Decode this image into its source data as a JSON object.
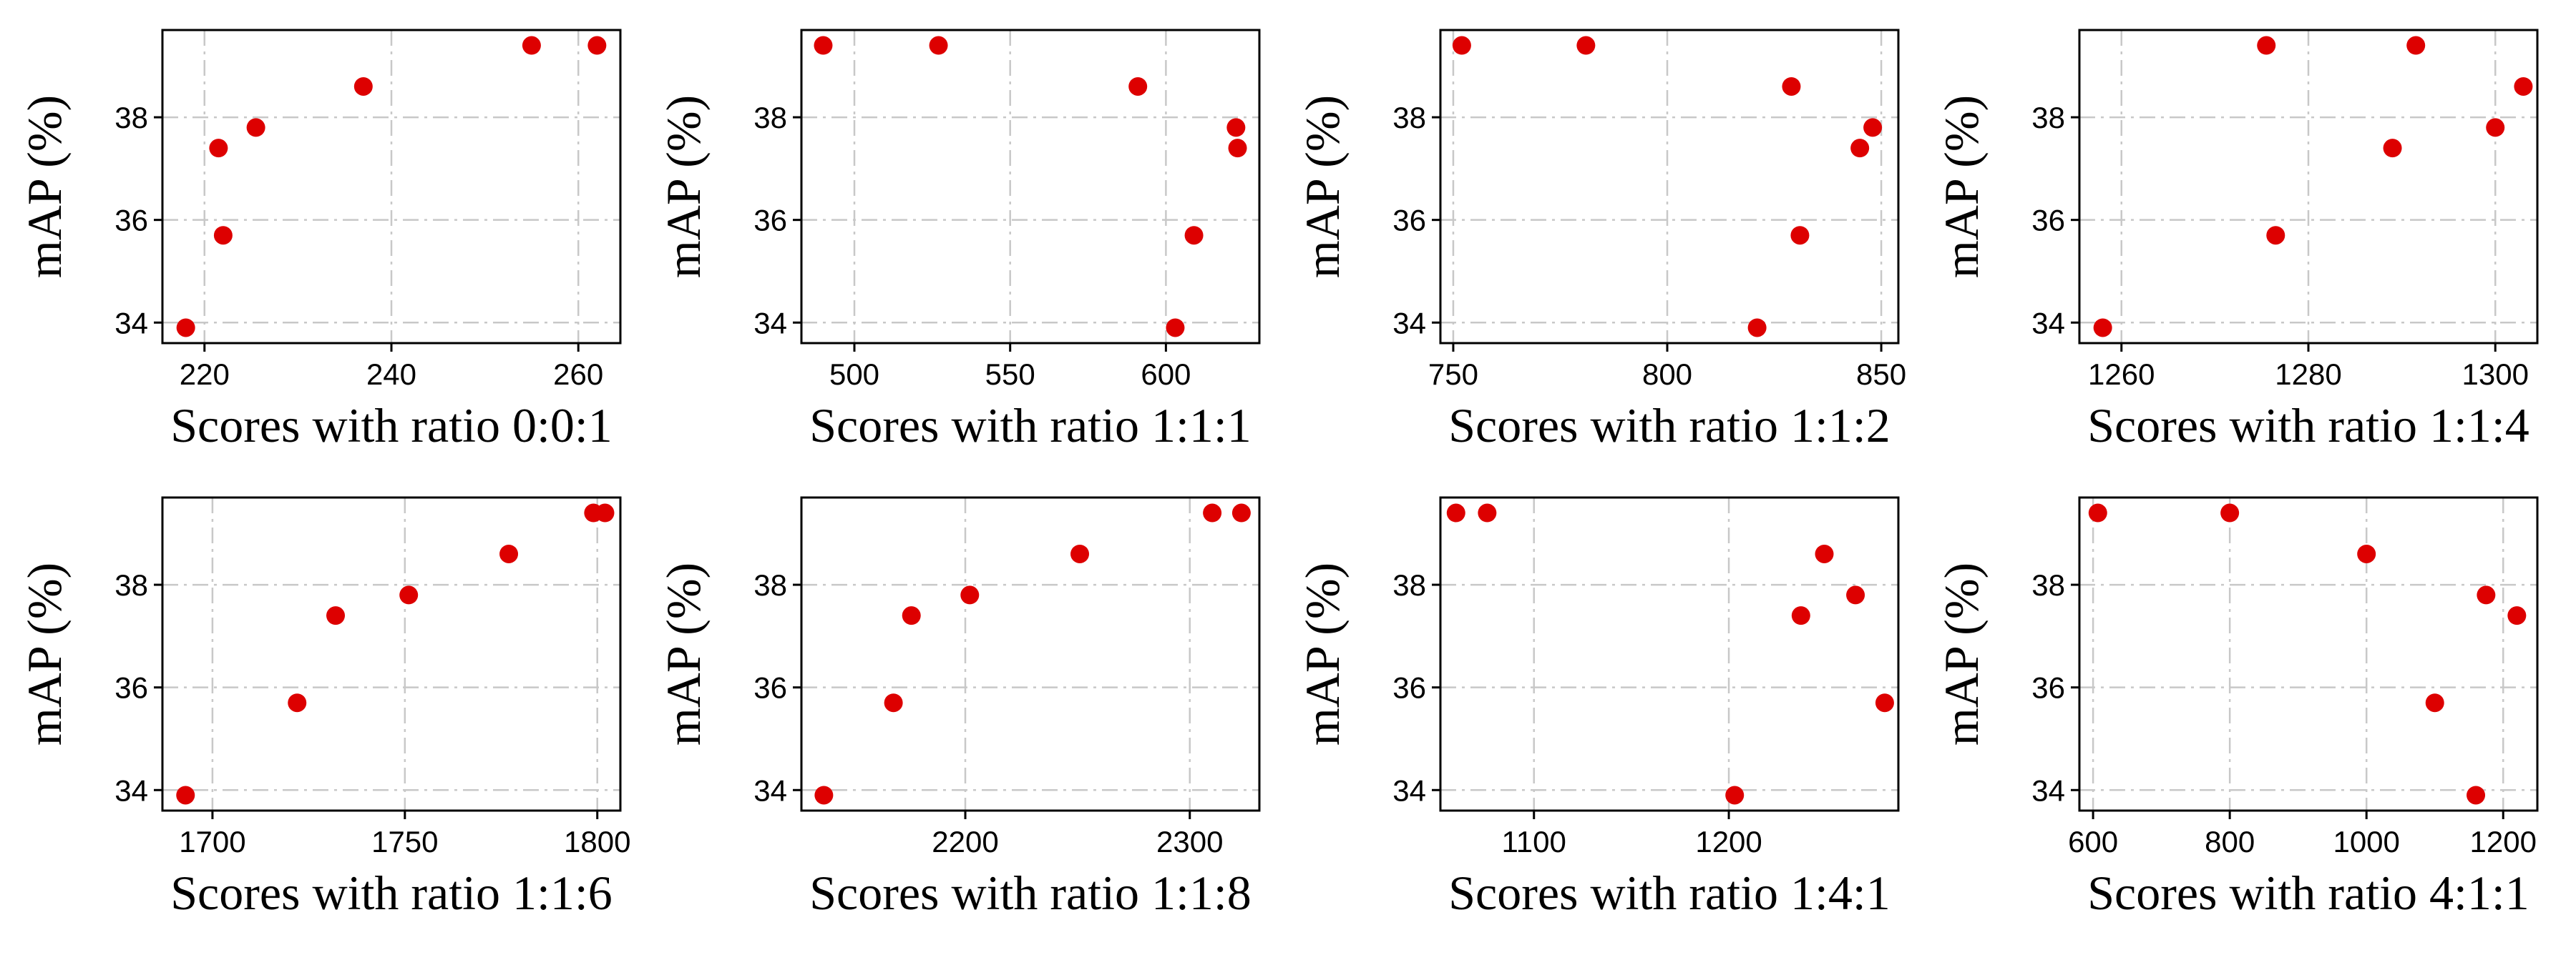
{
  "figure": {
    "background": "#ffffff",
    "marker_color": "#dd0000"
  },
  "chart_data": [
    {
      "type": "scatter",
      "xlabel": "Scores with ratio 0:0:1",
      "ylabel": "mAP (%)",
      "xlim": [
        215.5,
        264.5
      ],
      "ylim": [
        33.6,
        39.7
      ],
      "xticks": [
        220,
        240,
        260
      ],
      "yticks": [
        34,
        36,
        38
      ],
      "x": [
        218,
        222,
        221.5,
        225.5,
        237,
        255,
        262
      ],
      "y": [
        33.9,
        35.7,
        37.4,
        37.8,
        38.6,
        39.4,
        39.4
      ]
    },
    {
      "type": "scatter",
      "xlabel": "Scores with ratio 1:1:1",
      "ylabel": "mAP (%)",
      "xlim": [
        483,
        630
      ],
      "ylim": [
        33.6,
        39.7
      ],
      "xticks": [
        500,
        550,
        600
      ],
      "yticks": [
        34,
        36,
        38
      ],
      "x": [
        603,
        609,
        623,
        622.5,
        591,
        527,
        490
      ],
      "y": [
        33.9,
        35.7,
        37.4,
        37.8,
        38.6,
        39.4,
        39.4
      ]
    },
    {
      "type": "scatter",
      "xlabel": "Scores with ratio 1:1:2",
      "ylabel": "mAP (%)",
      "xlim": [
        747,
        854
      ],
      "ylim": [
        33.6,
        39.7
      ],
      "xticks": [
        750,
        800,
        850
      ],
      "yticks": [
        34,
        36,
        38
      ],
      "x": [
        821,
        831,
        845,
        848,
        829,
        781,
        752
      ],
      "y": [
        33.9,
        35.7,
        37.4,
        37.8,
        38.6,
        39.4,
        39.4
      ]
    },
    {
      "type": "scatter",
      "xlabel": "Scores with ratio 1:1:4",
      "ylabel": "mAP (%)",
      "xlim": [
        1255.5,
        1304.5
      ],
      "ylim": [
        33.6,
        39.7
      ],
      "xticks": [
        1260,
        1280,
        1300
      ],
      "yticks": [
        34,
        36,
        38
      ],
      "x": [
        1258,
        1276.5,
        1289,
        1300,
        1303,
        1291.5,
        1275.5
      ],
      "y": [
        33.9,
        35.7,
        37.4,
        37.8,
        38.6,
        39.4,
        39.4
      ]
    },
    {
      "type": "scatter",
      "xlabel": "Scores with ratio 1:1:6",
      "ylabel": "mAP (%)",
      "xlim": [
        1687,
        1806
      ],
      "ylim": [
        33.6,
        39.7
      ],
      "xticks": [
        1700,
        1750,
        1800
      ],
      "yticks": [
        34,
        36,
        38
      ],
      "x": [
        1693,
        1722,
        1732,
        1751,
        1777,
        1799,
        1802
      ],
      "y": [
        33.9,
        35.7,
        37.4,
        37.8,
        38.6,
        39.4,
        39.4
      ]
    },
    {
      "type": "scatter",
      "xlabel": "Scores with ratio 1:1:8",
      "ylabel": "mAP (%)",
      "xlim": [
        2127,
        2331
      ],
      "ylim": [
        33.6,
        39.7
      ],
      "xticks": [
        2200,
        2300
      ],
      "yticks": [
        34,
        36,
        38
      ],
      "x": [
        2137,
        2168,
        2176,
        2202,
        2251,
        2310,
        2323
      ],
      "y": [
        33.9,
        35.7,
        37.4,
        37.8,
        38.6,
        39.4,
        39.4
      ]
    },
    {
      "type": "scatter",
      "xlabel": "Scores with ratio 1:4:1",
      "ylabel": "mAP (%)",
      "xlim": [
        1052,
        1287
      ],
      "ylim": [
        33.6,
        39.7
      ],
      "xticks": [
        1100,
        1200
      ],
      "yticks": [
        34,
        36,
        38
      ],
      "x": [
        1203,
        1280,
        1237,
        1265,
        1249,
        1076,
        1060
      ],
      "y": [
        33.9,
        35.7,
        37.4,
        37.8,
        38.6,
        39.4,
        39.4
      ]
    },
    {
      "type": "scatter",
      "xlabel": "Scores with ratio 4:1:1",
      "ylabel": "mAP (%)",
      "xlim": [
        580,
        1250
      ],
      "ylim": [
        33.6,
        39.7
      ],
      "xticks": [
        600,
        800,
        1000,
        1200
      ],
      "yticks": [
        34,
        36,
        38
      ],
      "x": [
        1160,
        1100,
        1220,
        1175,
        1000,
        800,
        607
      ],
      "y": [
        33.9,
        35.7,
        37.4,
        37.8,
        38.6,
        39.4,
        39.4
      ]
    }
  ]
}
